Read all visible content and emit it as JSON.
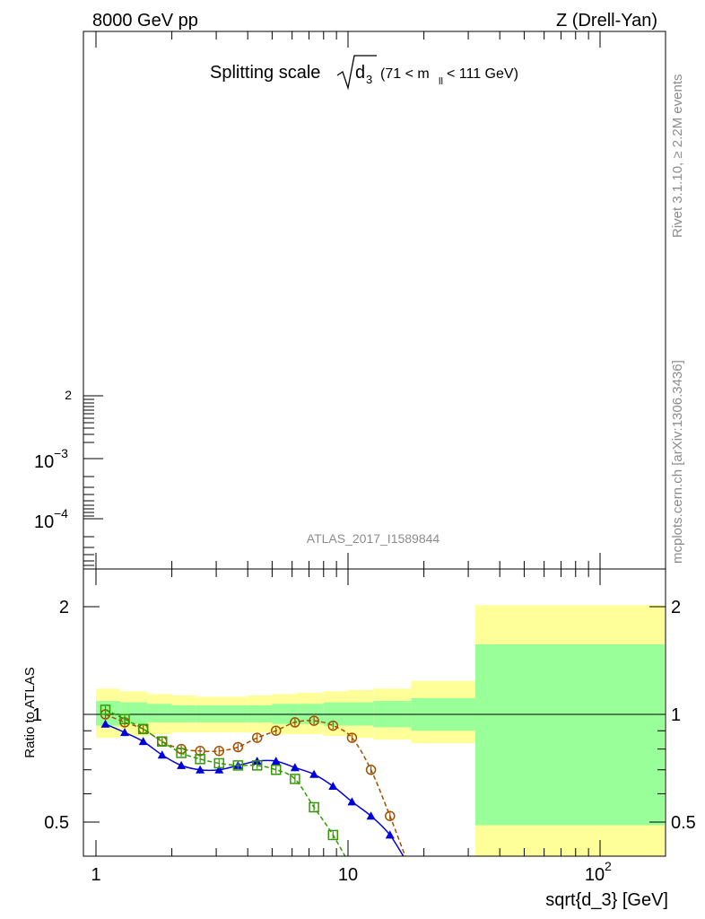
{
  "header": {
    "left": "8000 GeV pp",
    "right": "Z (Drell-Yan)"
  },
  "side_text": {
    "top": "Rivet 3.1.10, ≥ 2.2M events",
    "bottom": "mcplots.cern.ch [arXiv:1306.3436]"
  },
  "chart_data": [
    {
      "type": "line",
      "title": {
        "text": "Splitting scale",
        "radical": "d",
        "radical_sub": "3",
        "range": "(71 < m",
        "range_sub": "ll",
        "range_end": " < 111 GeV)"
      },
      "watermark": "ATLAS_2017_I1589844",
      "yscale": "log",
      "y_ticks": [
        {
          "exponent": "",
          "mantissa": "2"
        },
        {
          "exponent": "−3",
          "mantissa": "10"
        },
        {
          "exponent": "−4",
          "mantissa": "10"
        }
      ],
      "series": []
    },
    {
      "type": "line",
      "xlabel": "sqrt{d_3} [GeV]",
      "ylabel": "Ratio to ATLAS",
      "xscale": "log",
      "xlim": [
        0.93,
        180
      ],
      "ylim": [
        0.35,
        2.3
      ],
      "yscale": "log",
      "x_tick_labels": [
        "1",
        "10",
        "10"
      ],
      "x_tick_exponent": "2",
      "y_tick_labels": [
        "2",
        "1",
        "0.5"
      ],
      "reference_line": 1,
      "colors": {
        "band_outer": "#ffff99",
        "band_inner": "#99ff99",
        "blue": "#0000dd",
        "brown": "#a05000",
        "green": "#339900"
      },
      "bands": [
        {
          "x0": 1.0,
          "x1": 1.25,
          "outer": [
            0.86,
            1.18
          ],
          "inner": [
            0.93,
            1.09
          ]
        },
        {
          "x0": 1.25,
          "x1": 1.6,
          "outer": [
            0.87,
            1.16
          ],
          "inner": [
            0.94,
            1.08
          ]
        },
        {
          "x0": 1.6,
          "x1": 2.0,
          "outer": [
            0.88,
            1.14
          ],
          "inner": [
            0.95,
            1.07
          ]
        },
        {
          "x0": 2.0,
          "x1": 2.5,
          "outer": [
            0.89,
            1.13
          ],
          "inner": [
            0.95,
            1.06
          ]
        },
        {
          "x0": 2.5,
          "x1": 3.2,
          "outer": [
            0.89,
            1.12
          ],
          "inner": [
            0.95,
            1.06
          ]
        },
        {
          "x0": 3.2,
          "x1": 4.0,
          "outer": [
            0.89,
            1.12
          ],
          "inner": [
            0.95,
            1.06
          ]
        },
        {
          "x0": 4.0,
          "x1": 5.0,
          "outer": [
            0.89,
            1.13
          ],
          "inner": [
            0.95,
            1.06
          ]
        },
        {
          "x0": 5.0,
          "x1": 6.3,
          "outer": [
            0.88,
            1.14
          ],
          "inner": [
            0.94,
            1.07
          ]
        },
        {
          "x0": 6.3,
          "x1": 8.0,
          "outer": [
            0.88,
            1.15
          ],
          "inner": [
            0.94,
            1.07
          ]
        },
        {
          "x0": 8.0,
          "x1": 10.0,
          "outer": [
            0.87,
            1.16
          ],
          "inner": [
            0.93,
            1.08
          ]
        },
        {
          "x0": 10.0,
          "x1": 12.6,
          "outer": [
            0.86,
            1.17
          ],
          "inner": [
            0.93,
            1.08
          ]
        },
        {
          "x0": 12.6,
          "x1": 17.8,
          "outer": [
            0.85,
            1.18
          ],
          "inner": [
            0.92,
            1.09
          ]
        },
        {
          "x0": 17.8,
          "x1": 32.0,
          "outer": [
            0.83,
            1.24
          ],
          "inner": [
            0.9,
            1.11
          ]
        },
        {
          "x0": 32.0,
          "x1": 180.0,
          "outer": [
            0.35,
            2.02
          ],
          "inner": [
            0.49,
            1.57
          ]
        }
      ],
      "series": [
        {
          "marker": "triangle",
          "linestyle": "solid",
          "x": [
            1.09,
            1.3,
            1.54,
            1.83,
            2.18,
            2.59,
            3.08,
            3.66,
            4.36,
            5.18,
            6.16,
            7.33,
            8.72,
            10.37,
            12.33,
            14.67,
            17.45,
            20.75
          ],
          "y": [
            0.94,
            0.89,
            0.84,
            0.77,
            0.72,
            0.7,
            0.7,
            0.72,
            0.74,
            0.74,
            0.71,
            0.68,
            0.63,
            0.57,
            0.52,
            0.46,
            0.38,
            0.33
          ]
        },
        {
          "marker": "open-circle",
          "linestyle": "dashed",
          "x": [
            1.09,
            1.3,
            1.54,
            1.83,
            2.18,
            2.59,
            3.08,
            3.66,
            4.36,
            5.18,
            6.16,
            7.33,
            8.72,
            10.37,
            12.33,
            14.67,
            17.45,
            20.75
          ],
          "y": [
            1.0,
            0.95,
            0.91,
            0.84,
            0.8,
            0.79,
            0.79,
            0.81,
            0.86,
            0.9,
            0.95,
            0.96,
            0.93,
            0.86,
            0.7,
            0.52,
            0.38,
            0.3
          ]
        },
        {
          "marker": "open-square",
          "linestyle": "dashed",
          "x": [
            1.09,
            1.3,
            1.54,
            1.83,
            2.18,
            2.59,
            3.08,
            3.66,
            4.36,
            5.18,
            6.16,
            7.33,
            8.72,
            10.37
          ],
          "y": [
            1.03,
            0.97,
            0.91,
            0.84,
            0.78,
            0.75,
            0.73,
            0.72,
            0.72,
            0.7,
            0.66,
            0.55,
            0.46,
            0.37
          ]
        }
      ]
    }
  ]
}
